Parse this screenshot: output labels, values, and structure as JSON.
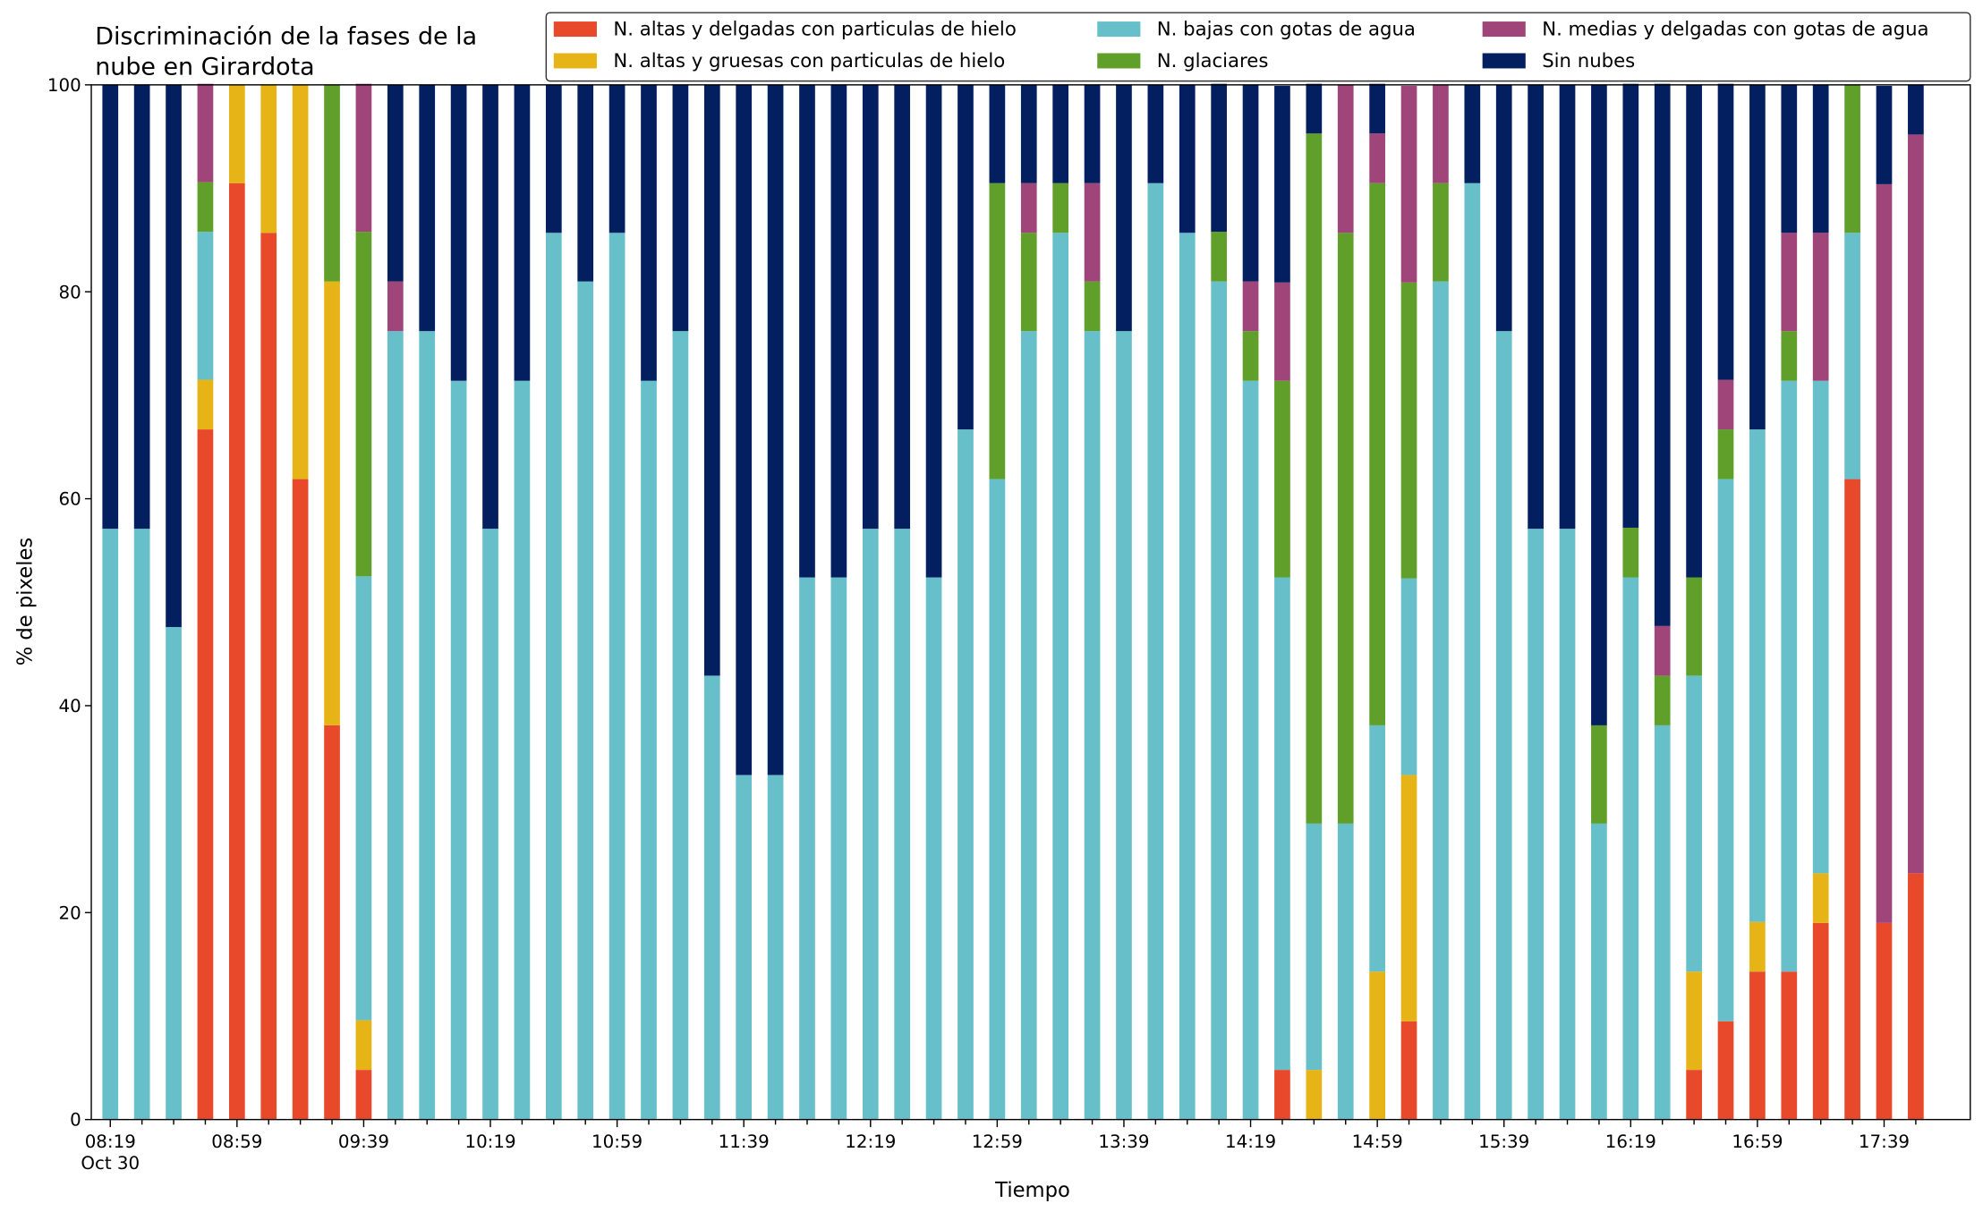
{
  "chart_data": {
    "type": "stacked_bar",
    "title": [
      "Discriminación de la fases de la",
      "nube en Girardota"
    ],
    "xlabel": "Tiempo",
    "ylabel": "% de pixeles",
    "date_label": "Oct 30",
    "categories": [
      "08:19",
      null,
      null,
      null,
      "08:59",
      null,
      null,
      null,
      "09:39",
      null,
      null,
      null,
      "10:19",
      null,
      null,
      null,
      "10:59",
      null,
      null,
      null,
      "11:39",
      null,
      null,
      null,
      "12:19",
      null,
      null,
      null,
      "12:59",
      null,
      null,
      null,
      "13:39",
      null,
      null,
      null,
      "14:19",
      null,
      null,
      null,
      "14:59",
      null,
      null,
      null,
      "15:39",
      null,
      null,
      null,
      "16:19",
      null,
      null,
      null,
      "16:59",
      null,
      null,
      null,
      "17:39",
      null
    ],
    "ylim": [
      0,
      100
    ],
    "yticks": [
      0,
      20,
      40,
      60,
      80,
      100
    ],
    "legend": "top",
    "series": [
      {
        "name": "N. altas y delgadas con particulas de hielo",
        "color": "#e8492b",
        "values": [
          0,
          0,
          0,
          66.7,
          90.5,
          85.7,
          61.9,
          38.1,
          4.8,
          0,
          0,
          0,
          0,
          0,
          0,
          0,
          0,
          0,
          0,
          0,
          0,
          0,
          0,
          0,
          0,
          0,
          0,
          0,
          0,
          0,
          0,
          0,
          0,
          0,
          0,
          0,
          0,
          4.8,
          0,
          0,
          0,
          9.5,
          0,
          0,
          0,
          0,
          0,
          0,
          0,
          0,
          4.8,
          9.5,
          14.3,
          14.3,
          19.0,
          61.9,
          19.0,
          23.8
        ]
      },
      {
        "name": "N. altas y gruesas con particulas de hielo",
        "color": "#e6b416",
        "values": [
          0,
          0,
          0,
          4.8,
          9.5,
          14.3,
          38.1,
          42.9,
          4.8,
          0,
          0,
          0,
          0,
          0,
          0,
          0,
          0,
          0,
          0,
          0,
          0,
          0,
          0,
          0,
          0,
          0,
          0,
          0,
          0,
          0,
          0,
          0,
          0,
          0,
          0,
          0,
          0,
          0,
          4.8,
          0,
          14.3,
          23.8,
          0,
          0,
          0,
          0,
          0,
          0,
          0,
          0,
          9.5,
          0,
          4.8,
          0,
          4.8,
          0,
          0,
          0
        ]
      },
      {
        "name": "N. bajas con gotas de agua",
        "color": "#67bfc9",
        "values": [
          57.1,
          57.1,
          47.6,
          14.3,
          0,
          0,
          0,
          0,
          42.9,
          76.2,
          76.2,
          71.4,
          57.1,
          71.4,
          85.7,
          81.0,
          85.7,
          71.4,
          76.2,
          42.9,
          33.3,
          33.3,
          52.4,
          52.4,
          57.1,
          57.1,
          52.4,
          66.7,
          61.9,
          76.2,
          85.7,
          76.2,
          76.2,
          90.5,
          85.7,
          81.0,
          71.4,
          47.6,
          23.8,
          28.6,
          23.8,
          19.0,
          81.0,
          90.5,
          76.2,
          57.1,
          57.1,
          28.6,
          52.4,
          38.1,
          28.6,
          52.4,
          47.6,
          57.1,
          47.6,
          23.8,
          0,
          0
        ]
      },
      {
        "name": "N. glaciares",
        "color": "#5f9f2a",
        "values": [
          0,
          0,
          0,
          4.8,
          0,
          0,
          0,
          19.0,
          33.3,
          0,
          0,
          0,
          0,
          0,
          0,
          0,
          0,
          0,
          0,
          0,
          0,
          0,
          0,
          0,
          0,
          0,
          0,
          0,
          28.6,
          9.5,
          4.8,
          4.8,
          0,
          0,
          0,
          4.8,
          4.8,
          19.0,
          66.7,
          57.1,
          52.4,
          28.6,
          9.5,
          0,
          0,
          0,
          0,
          9.5,
          4.8,
          4.8,
          9.5,
          4.8,
          0,
          4.8,
          0,
          14.3,
          0,
          0
        ]
      },
      {
        "name": "N. medias y delgadas con gotas de agua",
        "color": "#a0457a",
        "values": [
          0,
          0,
          0,
          9.5,
          0,
          0,
          0,
          0,
          14.3,
          4.8,
          0,
          0,
          0,
          0,
          0,
          0,
          0,
          0,
          0,
          0,
          0,
          0,
          0,
          0,
          0,
          0,
          0,
          0,
          0,
          4.8,
          0,
          9.5,
          0,
          0,
          0,
          0,
          4.8,
          9.5,
          0,
          14.3,
          4.8,
          19.0,
          9.5,
          0,
          0,
          0,
          0,
          0,
          0,
          4.8,
          0,
          4.8,
          0,
          9.5,
          14.3,
          0,
          71.4,
          71.4
        ]
      },
      {
        "name": "Sin nubes",
        "color": "#031f60",
        "values": [
          42.9,
          42.9,
          52.4,
          0,
          0,
          0,
          0,
          0,
          0,
          19.0,
          23.8,
          28.6,
          42.9,
          28.6,
          14.3,
          19.0,
          14.3,
          28.6,
          23.8,
          57.1,
          66.7,
          66.7,
          47.6,
          47.6,
          42.9,
          42.9,
          47.6,
          33.3,
          9.5,
          9.5,
          9.5,
          9.5,
          23.8,
          9.5,
          14.3,
          14.3,
          19.0,
          19.0,
          4.8,
          0,
          4.8,
          0,
          0,
          9.5,
          23.8,
          42.9,
          42.9,
          61.9,
          42.9,
          52.4,
          47.6,
          28.6,
          33.3,
          14.3,
          14.3,
          0,
          9.5,
          4.8
        ]
      }
    ]
  }
}
